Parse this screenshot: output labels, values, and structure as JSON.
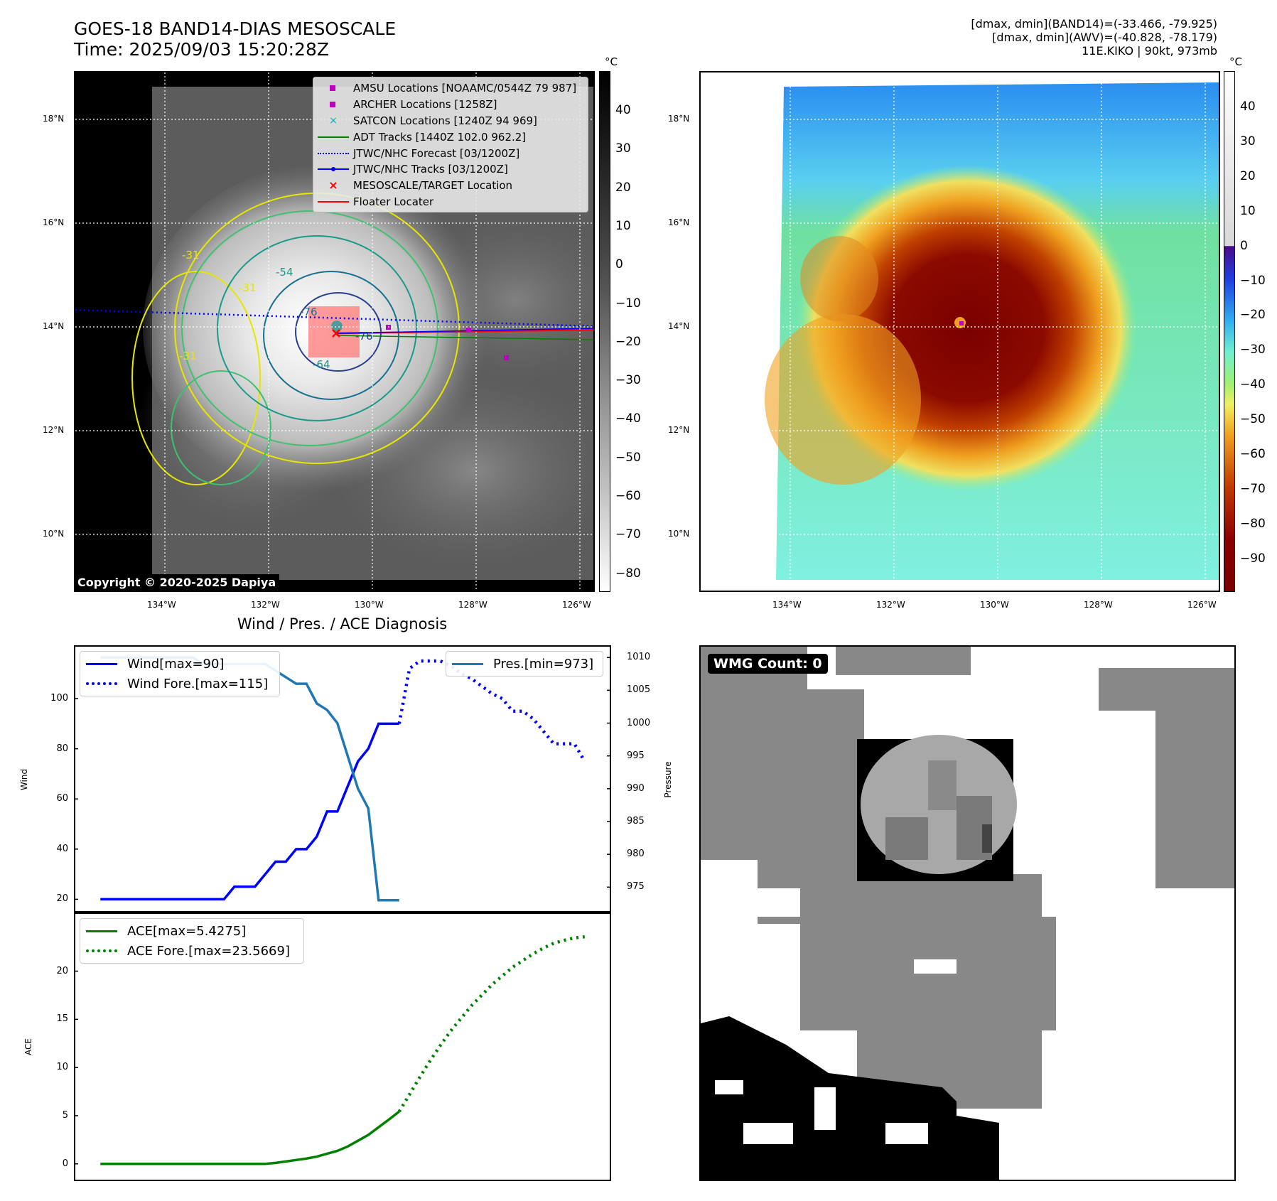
{
  "header": {
    "title_line1": "GOES-18 BAND14-DIAS MESOSCALE",
    "title_line2": "Time: 2025/09/03 15:20:28Z",
    "info_line1": "[dmax, dmin](BAND14)=(-33.466, -79.925)",
    "info_line2": "[dmax, dmin](AWV)=(-40.828, -78.179)",
    "info_line3": "11E.KIKO | 90kt, 973mb"
  },
  "map": {
    "lat_labels": [
      "18°N",
      "16°N",
      "14°N",
      "12°N",
      "10°N"
    ],
    "lon_labels": [
      "134°W",
      "132°W",
      "130°W",
      "128°W",
      "126°W"
    ],
    "copyright": "Copyright © 2020-2025 Dapiya",
    "contour_labels": [
      "-31",
      "-54",
      "-76",
      "-64",
      "-31",
      "-76",
      "-31"
    ],
    "legend": [
      {
        "label": "AMSU Locations [NOAAMC/0544Z 79 987]",
        "symbol": "square",
        "color": "#c000c0"
      },
      {
        "label": "ARCHER Locations [1258Z]",
        "symbol": "square",
        "color": "#c000c0"
      },
      {
        "label": "SATCON Locations [1240Z 94 969]",
        "symbol": "x",
        "color": "#00b0b0"
      },
      {
        "label": "ADT Tracks [1440Z 102.0 962.2]",
        "symbol": "line",
        "color": "#008000"
      },
      {
        "label": "JTWC/NHC Forecast [03/1200Z]",
        "symbol": "dotted",
        "color": "#0000ff"
      },
      {
        "label": "JTWC/NHC Tracks [03/1200Z]",
        "symbol": "line-dot",
        "color": "#0000ff"
      },
      {
        "label": "MESOSCALE/TARGET Location",
        "symbol": "x",
        "color": "#ff0000"
      },
      {
        "label": "Floater Locater",
        "symbol": "line",
        "color": "#ff0000"
      }
    ]
  },
  "colorbar_gray": {
    "unit": "°C",
    "ticks": [
      "40",
      "30",
      "20",
      "10",
      "0",
      "−10",
      "−20",
      "−30",
      "−40",
      "−50",
      "−60",
      "−70",
      "−80"
    ]
  },
  "colorbar_color": {
    "unit": "°C",
    "ticks": [
      "40",
      "30",
      "20",
      "10",
      "0",
      "−10",
      "−20",
      "−30",
      "−40",
      "−50",
      "−60",
      "−70",
      "−80",
      "−90"
    ]
  },
  "chart_data": [
    {
      "type": "line",
      "title": "Wind / Pres. / ACE Diagnosis",
      "ylabel": "Wind",
      "y2label": "Pressure",
      "ylim": [
        17,
        119
      ],
      "y2lim": [
        972,
        1011
      ],
      "yticks": [
        "20",
        "40",
        "60",
        "80",
        "100"
      ],
      "y2ticks": [
        "975",
        "980",
        "985",
        "990",
        "995",
        "1000",
        "1005",
        "1010"
      ],
      "legend": [
        "Wind[max=90]",
        "Wind Fore.[max=115]"
      ],
      "legend2": [
        "Pres.[min=973]"
      ],
      "series": [
        {
          "name": "Wind[max=90]",
          "style": "solid",
          "color": "#0000ff",
          "axis": "left",
          "x": [
            0,
            1,
            2,
            3,
            4,
            5,
            6,
            7,
            8,
            9,
            10,
            11,
            12,
            13,
            14,
            15,
            16,
            17,
            18,
            19,
            20,
            21,
            22,
            23,
            24,
            25,
            26,
            27,
            28,
            29
          ],
          "values": [
            20,
            20,
            20,
            20,
            20,
            20,
            20,
            20,
            20,
            20,
            20,
            20,
            20,
            25,
            25,
            25,
            30,
            35,
            35,
            40,
            40,
            45,
            55,
            55,
            65,
            75,
            80,
            90,
            90,
            90
          ]
        },
        {
          "name": "Wind Fore.[max=115]",
          "style": "dotted",
          "color": "#0000ff",
          "axis": "left",
          "x": [
            29,
            30,
            31,
            32,
            33,
            34,
            35,
            36,
            37,
            38,
            39,
            40,
            41,
            42,
            43,
            44,
            45,
            46,
            47
          ],
          "values": [
            90,
            112,
            115,
            115,
            115,
            113,
            110,
            108,
            105,
            102,
            100,
            95,
            95,
            92,
            87,
            82,
            82,
            82,
            75
          ]
        },
        {
          "name": "Pres.[min=973]",
          "style": "solid",
          "color": "#1f77b4",
          "axis": "right",
          "x": [
            0,
            1,
            2,
            3,
            4,
            5,
            6,
            7,
            8,
            9,
            10,
            11,
            12,
            13,
            14,
            15,
            16,
            17,
            18,
            19,
            20,
            21,
            22,
            23,
            24,
            25,
            26,
            27,
            28,
            29
          ],
          "values": [
            1010,
            1010,
            1010,
            1010,
            1010,
            1010,
            1010,
            1010,
            1010,
            1010,
            1009,
            1009,
            1009,
            1009,
            1009,
            1009,
            1009,
            1008,
            1007,
            1006,
            1006,
            1003,
            1002,
            1000,
            995,
            990,
            987,
            973,
            973,
            973
          ]
        }
      ]
    },
    {
      "type": "line",
      "ylabel": "ACE",
      "ylim": [
        -1.2,
        25.5
      ],
      "yticks": [
        "0",
        "5",
        "10",
        "15",
        "20"
      ],
      "legend": [
        "ACE[max=5.4275]",
        "ACE Fore.[max=23.5669]"
      ],
      "series": [
        {
          "name": "ACE[max=5.4275]",
          "style": "solid",
          "color": "#008000",
          "x": [
            0,
            1,
            2,
            3,
            4,
            5,
            6,
            7,
            8,
            9,
            10,
            11,
            12,
            13,
            14,
            15,
            16,
            17,
            18,
            19,
            20,
            21,
            22,
            23,
            24,
            25,
            26,
            27,
            28,
            29
          ],
          "values": [
            0,
            0,
            0,
            0,
            0,
            0,
            0,
            0,
            0,
            0,
            0,
            0,
            0,
            0,
            0,
            0,
            0,
            0.1,
            0.25,
            0.4,
            0.55,
            0.75,
            1.05,
            1.35,
            1.8,
            2.4,
            3.0,
            3.8,
            4.6,
            5.4275
          ]
        },
        {
          "name": "ACE Fore.[max=23.5669]",
          "style": "dotted",
          "color": "#008000",
          "x": [
            29,
            30,
            31,
            32,
            33,
            34,
            35,
            36,
            37,
            38,
            39,
            40,
            41,
            42,
            43,
            44,
            45,
            46,
            47
          ],
          "values": [
            5.4275,
            7.2,
            9.0,
            10.7,
            12.3,
            13.8,
            15.1,
            16.4,
            17.5,
            18.6,
            19.5,
            20.4,
            21.1,
            21.8,
            22.4,
            22.9,
            23.2,
            23.45,
            23.5669
          ]
        }
      ]
    }
  ],
  "wmg": {
    "label": "WMG Count: 0"
  }
}
